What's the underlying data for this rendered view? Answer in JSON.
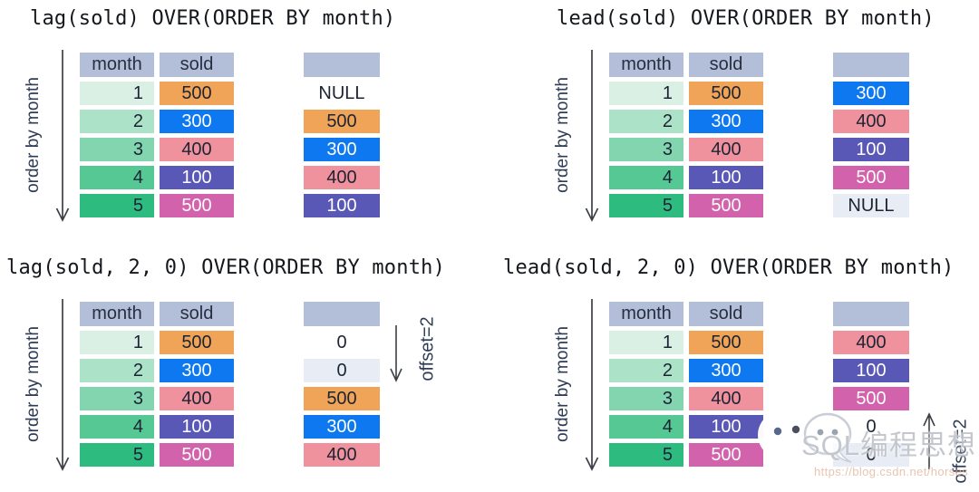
{
  "axis_label": "order by month",
  "columns": [
    "month",
    "sold"
  ],
  "palette": {
    "header_bg": "#b3bed9",
    "orange": "#f0a458",
    "blue": "#0d78f0",
    "salmon": "#f0929e",
    "indigo": "#5a58b6",
    "magenta": "#d262ab",
    "light": "#e8ecf4",
    "plain": "",
    "greens": [
      "#daf0e5",
      "#ace3c8",
      "#82d5ae",
      "#55c894",
      "#2ebb80"
    ],
    "dark_text": "#1c2433",
    "white_text": "#ffffff"
  },
  "table_rows": [
    {
      "month": "1",
      "sold": "500",
      "color": "orange"
    },
    {
      "month": "2",
      "sold": "300",
      "color": "blue"
    },
    {
      "month": "3",
      "sold": "400",
      "color": "salmon"
    },
    {
      "month": "4",
      "sold": "100",
      "color": "indigo"
    },
    {
      "month": "5",
      "sold": "500",
      "color": "magenta"
    }
  ],
  "panels": [
    {
      "title": "lag(sold) OVER(ORDER BY month)",
      "result": [
        {
          "text": "NULL",
          "color": "plain"
        },
        {
          "text": "500",
          "color": "orange"
        },
        {
          "text": "300",
          "color": "blue"
        },
        {
          "text": "400",
          "color": "salmon"
        },
        {
          "text": "100",
          "color": "indigo"
        }
      ]
    },
    {
      "title": "lead(sold) OVER(ORDER BY month)",
      "result": [
        {
          "text": "300",
          "color": "blue"
        },
        {
          "text": "400",
          "color": "salmon"
        },
        {
          "text": "100",
          "color": "indigo"
        },
        {
          "text": "500",
          "color": "magenta"
        },
        {
          "text": "NULL",
          "color": "light"
        }
      ]
    },
    {
      "title": "lag(sold, 2, 0) OVER(ORDER BY month)",
      "offset": {
        "label": "offset=2",
        "direction": "down"
      },
      "result": [
        {
          "text": "0",
          "color": "plain"
        },
        {
          "text": "0",
          "color": "light"
        },
        {
          "text": "500",
          "color": "orange"
        },
        {
          "text": "300",
          "color": "blue"
        },
        {
          "text": "400",
          "color": "salmon"
        }
      ]
    },
    {
      "title": "lead(sold, 2, 0) OVER(ORDER BY month)",
      "offset": {
        "label": "offset=2",
        "direction": "up"
      },
      "result": [
        {
          "text": "400",
          "color": "salmon"
        },
        {
          "text": "100",
          "color": "indigo"
        },
        {
          "text": "500",
          "color": "magenta"
        },
        {
          "text": "0",
          "color": "plain"
        },
        {
          "text": "0",
          "color": "light"
        }
      ]
    }
  ],
  "watermark": {
    "icon": "wechat-bubbles-icon",
    "brand": "SQL编程思想",
    "url": "https://blog.csdn.net/horses"
  }
}
